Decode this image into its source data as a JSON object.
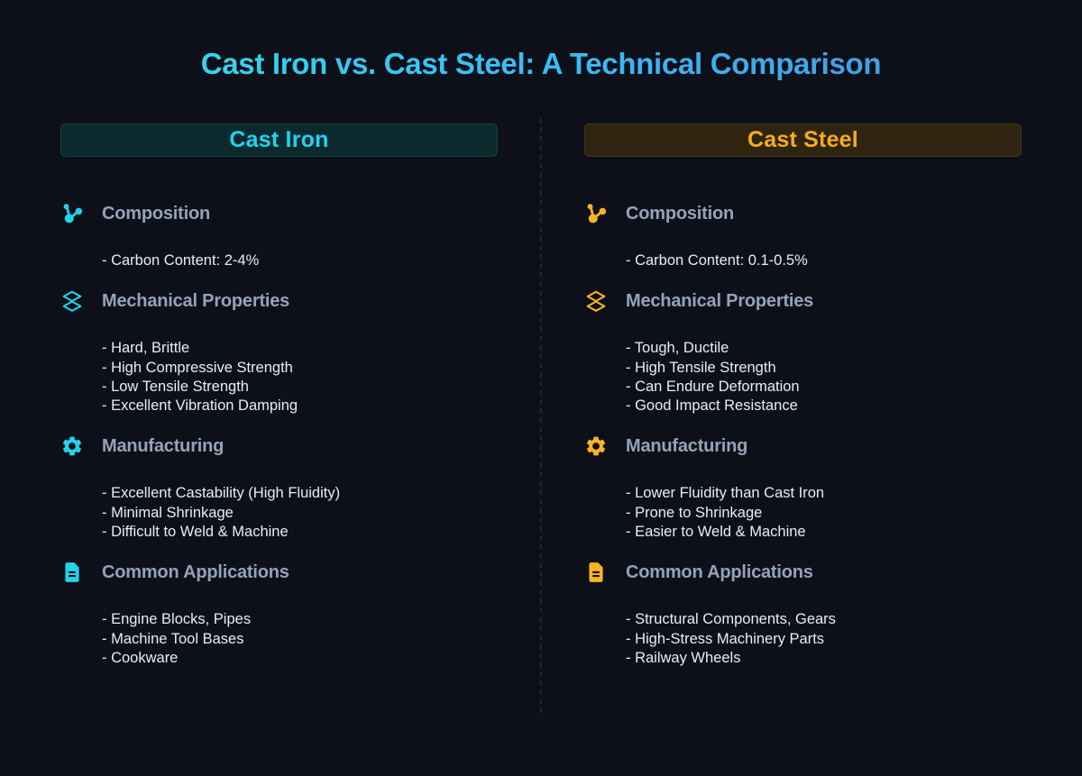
{
  "page": {
    "title": "Cast Iron vs. Cast Steel: A Technical Comparison",
    "background": "#0d1019",
    "title_gradient": [
      "#2ee3e6",
      "#38bdf8",
      "#4a8fd8"
    ],
    "divider_color": "#2a3647",
    "heading_color": "#94a3b8",
    "body_color": "#e9edf2"
  },
  "columns": [
    {
      "id": "cast-iron",
      "header": {
        "label": "Cast Iron",
        "text_color": "#22d3ee",
        "bg_color": "#0c2a2e",
        "border_color": "#1c3e43"
      },
      "accent": "#22d3ee",
      "sections": [
        {
          "icon": "molecule-icon",
          "heading": "Composition",
          "items": [
            "- Carbon Content: 2-4%"
          ]
        },
        {
          "icon": "layers-icon",
          "heading": "Mechanical Properties",
          "items": [
            "- Hard, Brittle",
            "- High Compressive Strength",
            "- Low Tensile Strength",
            "- Excellent Vibration Damping"
          ]
        },
        {
          "icon": "gear-icon",
          "heading": "Manufacturing",
          "items": [
            "- Excellent Castability (High Fluidity)",
            "- Minimal Shrinkage",
            "- Difficult to Weld & Machine"
          ]
        },
        {
          "icon": "document-icon",
          "heading": "Common Applications",
          "items": [
            "- Engine Blocks, Pipes",
            "- Machine Tool Bases",
            "- Cookware"
          ]
        }
      ]
    },
    {
      "id": "cast-steel",
      "header": {
        "label": "Cast Steel",
        "text_color": "#f6ab1e",
        "bg_color": "#2e2410",
        "border_color": "#463617"
      },
      "accent": "#f9b324",
      "sections": [
        {
          "icon": "molecule-icon",
          "heading": "Composition",
          "items": [
            "- Carbon Content: 0.1-0.5%"
          ]
        },
        {
          "icon": "layers-icon",
          "heading": "Mechanical Properties",
          "items": [
            "- Tough, Ductile",
            "- High Tensile Strength",
            "- Can Endure Deformation",
            "- Good Impact Resistance"
          ]
        },
        {
          "icon": "gear-icon",
          "heading": "Manufacturing",
          "items": [
            "- Lower Fluidity than Cast Iron",
            "- Prone to Shrinkage",
            "- Easier to Weld & Machine"
          ]
        },
        {
          "icon": "document-icon",
          "heading": "Common Applications",
          "items": [
            "- Structural Components, Gears",
            "- High-Stress Machinery Parts",
            "- Railway Wheels"
          ]
        }
      ]
    }
  ]
}
